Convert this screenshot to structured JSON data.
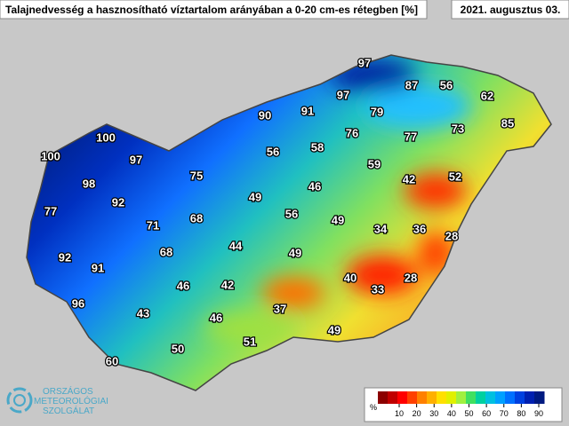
{
  "title": "Talajnedvesség a hasznosítható víztartalom arányában a 0-20 cm-es rétegben [%]",
  "date": "2021. augusztus 03.",
  "stations": [
    97,
    87,
    56,
    62,
    97,
    90,
    91,
    79,
    85,
    73,
    77,
    76,
    100,
    100,
    97,
    56,
    58,
    59,
    75,
    98,
    46,
    42,
    52,
    92,
    49,
    77,
    68,
    56,
    49,
    71,
    34,
    36,
    28,
    44,
    68,
    49,
    92,
    91,
    40,
    28,
    46,
    42,
    33,
    96,
    37,
    43,
    46,
    49,
    51,
    50,
    60
  ],
  "legend": {
    "unit": "%",
    "ticks": [
      10,
      20,
      30,
      40,
      50,
      60,
      70,
      80,
      90
    ],
    "colors": [
      "#8b0000",
      "#c00000",
      "#ff0000",
      "#ff4000",
      "#ff8000",
      "#ffb000",
      "#ffe000",
      "#e0f000",
      "#a0f040",
      "#40e060",
      "#00d0a0",
      "#00c0e0",
      "#00a0ff",
      "#0070ff",
      "#0040e0",
      "#0020b0",
      "#001a80"
    ]
  },
  "logo": {
    "line1": "ORSZÁGOS",
    "line2": "METEOROLÓGIAI",
    "line3": "SZOLGÁLAT"
  }
}
